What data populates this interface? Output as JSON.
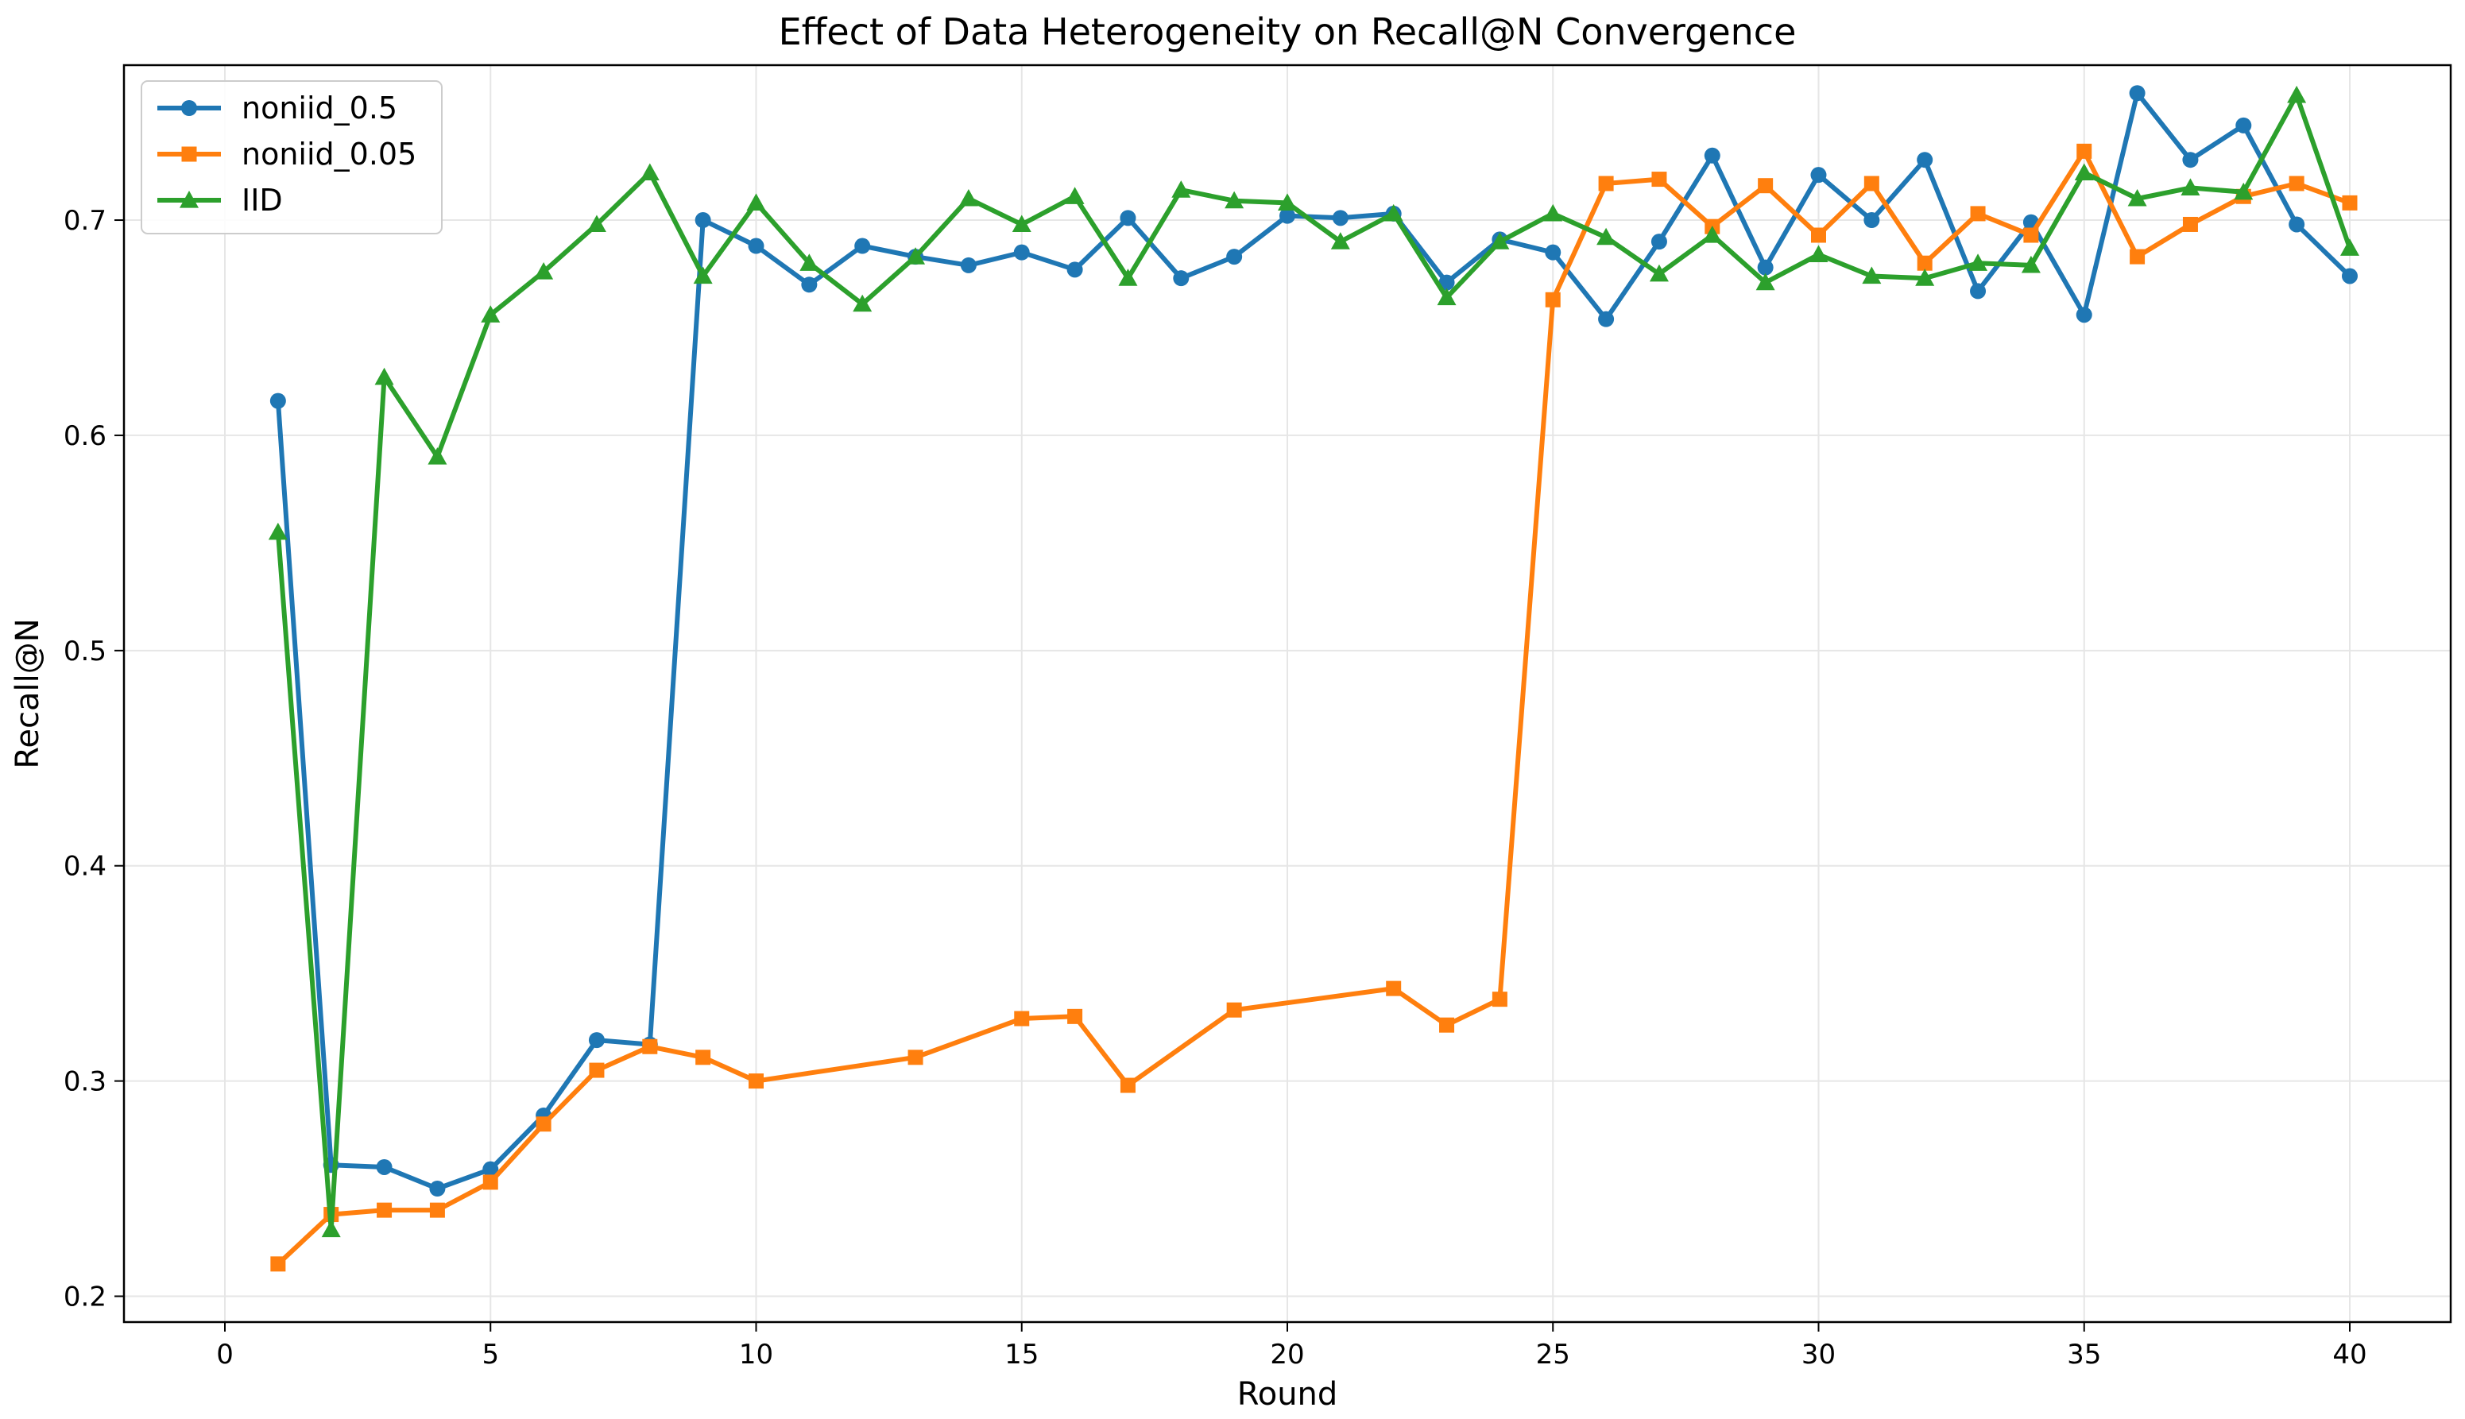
{
  "chart_data": {
    "type": "line",
    "title": "Effect of Data Heterogeneity on Recall@N Convergence",
    "xlabel": "Round",
    "ylabel": "Recall@N",
    "xlim": [
      -1.9,
      41.9
    ],
    "ylim": [
      0.188,
      0.772
    ],
    "xticks": [
      0,
      5,
      10,
      15,
      20,
      25,
      30,
      35,
      40
    ],
    "yticks": [
      0.2,
      0.3,
      0.4,
      0.5,
      0.6,
      0.7
    ],
    "grid": true,
    "legend_position": "top-left",
    "series": [
      {
        "name": "noniid_0.5",
        "color": "#1f77b4",
        "marker": "circle",
        "x": [
          1,
          2,
          3,
          4,
          5,
          6,
          7,
          8,
          9,
          10,
          11,
          12,
          13,
          14,
          15,
          16,
          17,
          18,
          19,
          20,
          21,
          22,
          23,
          24,
          25,
          26,
          27,
          28,
          29,
          30,
          31,
          32,
          33,
          34,
          35,
          36,
          37,
          38,
          39,
          40
        ],
        "values": [
          0.616,
          0.261,
          0.26,
          0.25,
          0.259,
          0.284,
          0.319,
          0.317,
          0.7,
          0.688,
          0.67,
          0.688,
          0.683,
          0.679,
          0.685,
          0.677,
          0.701,
          0.673,
          0.683,
          0.702,
          0.701,
          0.703,
          0.671,
          0.691,
          0.685,
          0.654,
          0.69,
          0.73,
          0.678,
          0.721,
          0.7,
          0.728,
          0.667,
          0.699,
          0.656,
          0.759,
          0.728,
          0.744,
          0.698,
          0.674
        ]
      },
      {
        "name": "noniid_0.05",
        "color": "#ff7f0e",
        "marker": "square",
        "x": [
          1,
          2,
          3,
          4,
          5,
          6,
          7,
          8,
          9,
          10,
          13,
          15,
          16,
          17,
          19,
          22,
          23,
          24,
          25,
          26,
          27,
          28,
          29,
          30,
          31,
          32,
          33,
          34,
          35,
          36,
          37,
          38,
          39,
          40
        ],
        "values": [
          0.215,
          0.238,
          0.24,
          0.24,
          0.253,
          0.28,
          0.305,
          0.316,
          0.311,
          0.3,
          0.311,
          0.329,
          0.33,
          0.298,
          0.333,
          0.343,
          0.326,
          0.338,
          0.663,
          0.717,
          0.719,
          0.697,
          0.716,
          0.693,
          0.717,
          0.68,
          0.703,
          0.693,
          0.732,
          0.683,
          0.698,
          0.711,
          0.717,
          0.708
        ]
      },
      {
        "name": "IID",
        "color": "#2ca02c",
        "marker": "triangle",
        "x": [
          1,
          2,
          3,
          4,
          5,
          6,
          7,
          8,
          9,
          10,
          11,
          12,
          13,
          14,
          15,
          16,
          17,
          18,
          19,
          20,
          21,
          22,
          23,
          24,
          25,
          26,
          27,
          28,
          29,
          30,
          31,
          32,
          33,
          34,
          35,
          36,
          37,
          38,
          39,
          40
        ],
        "values": [
          0.555,
          0.231,
          0.627,
          0.59,
          0.656,
          0.676,
          0.698,
          0.722,
          0.674,
          0.708,
          0.68,
          0.661,
          0.683,
          0.71,
          0.698,
          0.711,
          0.673,
          0.714,
          0.709,
          0.708,
          0.69,
          0.703,
          0.664,
          0.69,
          0.703,
          0.692,
          0.675,
          0.693,
          0.671,
          0.684,
          0.674,
          0.673,
          0.68,
          0.679,
          0.722,
          0.71,
          0.715,
          0.713,
          0.758,
          0.687
        ]
      }
    ]
  }
}
